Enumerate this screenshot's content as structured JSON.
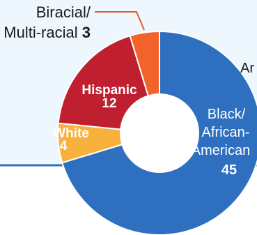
{
  "chart_data": {
    "type": "pie",
    "variant": "donut",
    "categories": [
      "Black/ African-American",
      "White",
      "Hispanic",
      "Biracial/ Multi-racial",
      "Ar"
    ],
    "values": [
      45,
      4,
      12,
      3,
      null
    ],
    "colors": {
      "Black/ African-American": "#2e6fc0",
      "White": "#f8b13c",
      "Hispanic": "#bf1f2e",
      "Biracial/ Multi-racial": "#f2622a",
      "background_panel": "#eef7fd",
      "divider": "#2e6fc0",
      "leader_line": "#e65a25"
    },
    "labels": {
      "black_line1": "Black/",
      "black_line2": "African-",
      "black_line3": "American",
      "black_value": "45",
      "white_name": "White",
      "white_value": "4",
      "hispanic_name": "Hispanic",
      "hispanic_value": "12",
      "biracial_line1": "Biracial/",
      "biracial_line2": "Multi-racial",
      "biracial_value": "3",
      "cut_off_text": "Ar"
    }
  }
}
